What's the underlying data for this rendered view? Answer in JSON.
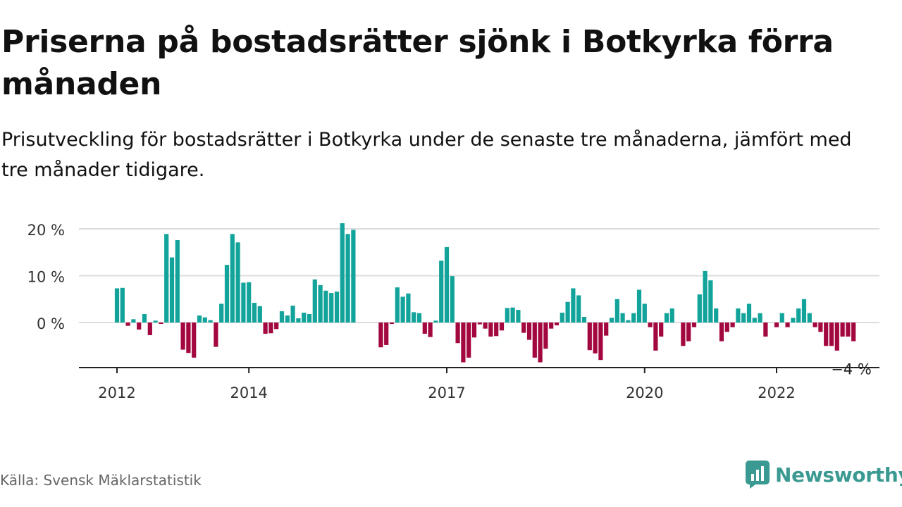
{
  "title": "Priserna på bostadsrätter sjönk i Botkyrka förra månaden",
  "subtitle": "Prisutveckling för bostadsrätter i Botkyrka under de senaste tre månaderna, jämfört med tre månader tidigare.",
  "source": "Källa: Svensk Mäklarstatistik",
  "brand": {
    "name": "Newsworthy",
    "icon": "newsworthy-logo-icon",
    "color": "#3a9a92"
  },
  "colors": {
    "positive": "#12a39b",
    "negative": "#a3073f",
    "grid": "#dddddd",
    "axis": "#222222"
  },
  "chart_data": {
    "type": "bar",
    "title": "Priserna på bostadsrätter sjönk i Botkyrka förra månaden",
    "subtitle": "Prisutveckling för bostadsrätter i Botkyrka under de senaste tre månaderna, jämfört med tre månader tidigare.",
    "xlabel": "",
    "ylabel": "",
    "start": "2012-01",
    "ylim": [
      -9.5,
      21
    ],
    "yticks": [
      0,
      10,
      20
    ],
    "ytick_labels": [
      "0 %",
      "10 %",
      "20 %"
    ],
    "xtick_labels": [
      "2012",
      "2014",
      "2017",
      "2020",
      "2022"
    ],
    "xtick_months": [
      "2012-01",
      "2014-01",
      "2017-01",
      "2020-01",
      "2022-01"
    ],
    "grid": true,
    "legend": "none",
    "annotation": {
      "text": "−4 %",
      "month": "2022-11"
    },
    "values": [
      7.3,
      7.4,
      -0.7,
      0.7,
      -1.5,
      1.8,
      -2.7,
      0.4,
      -0.3,
      18.9,
      13.9,
      17.6,
      -5.8,
      -6.5,
      -7.5,
      1.5,
      1.1,
      0.5,
      -5.2,
      4.0,
      12.3,
      18.9,
      17.1,
      8.5,
      8.6,
      4.2,
      3.5,
      -2.4,
      -2.3,
      -1.4,
      2.4,
      1.5,
      3.6,
      0.9,
      2.1,
      1.8,
      9.2,
      8.0,
      6.8,
      6.3,
      6.6,
      21.2,
      18.9,
      19.8,
      0,
      0,
      0,
      0,
      -5.3,
      -4.8,
      -0.3,
      7.5,
      5.5,
      6.2,
      2.2,
      2.0,
      -2.4,
      -3.1,
      0.4,
      13.2,
      16.1,
      9.9,
      -4.4,
      -8.5,
      -7.5,
      -3.2,
      -0.4,
      -1.3,
      -3.0,
      -2.9,
      -1.7,
      3.1,
      3.2,
      2.7,
      -2.2,
      -3.7,
      -7.5,
      -8.5,
      -5.6,
      -1.3,
      -0.6,
      2.1,
      4.4,
      7.3,
      5.8,
      1.2,
      -5.9,
      -6.6,
      -8.0,
      -2.8,
      1.0,
      5.0,
      2.0,
      0.5,
      2.0,
      7.0,
      4.0,
      -1.0,
      -6.0,
      -3.0,
      2.0,
      3.0,
      0,
      -5.0,
      -4.0,
      -1.0,
      6.0,
      11.0,
      9.0,
      3.0,
      -4.0,
      -2.0,
      -1.0,
      3.0,
      2.0,
      4.0,
      1.0,
      2.0,
      -3.0,
      0,
      -1.0,
      2.0,
      -1.0,
      1.0,
      3.0,
      5.0,
      2.0,
      -1.0,
      -2.0,
      -5.0,
      -5.0,
      -6.0,
      -3.0,
      -3.0,
      -4.0
    ]
  }
}
